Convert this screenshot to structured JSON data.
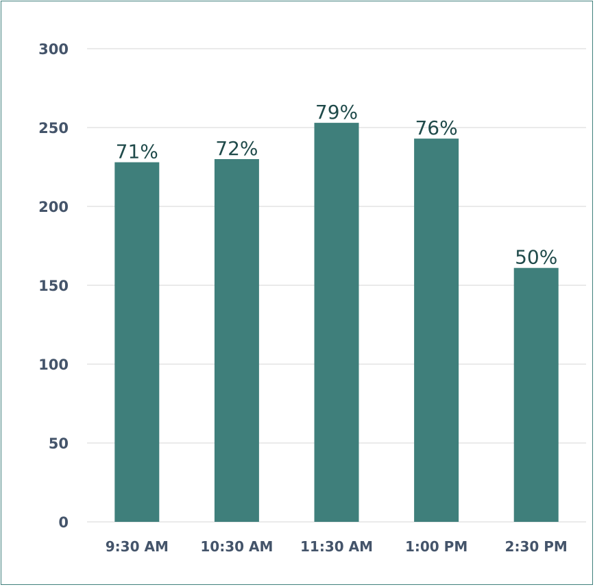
{
  "chart_data": {
    "type": "bar",
    "categories": [
      "9:30 AM",
      "10:30 AM",
      "11:30 AM",
      "1:00 PM",
      "2:30 PM"
    ],
    "values": [
      228,
      230,
      253,
      243,
      161
    ],
    "data_labels": [
      "71%",
      "72%",
      "79%",
      "76%",
      "50%"
    ],
    "y_ticks": [
      "0",
      "50",
      "100",
      "150",
      "200",
      "250",
      "300"
    ],
    "ylim": [
      0,
      300
    ],
    "grid": true,
    "bar_color": "#3f7f7b",
    "border_color": "#3f7f7b"
  }
}
